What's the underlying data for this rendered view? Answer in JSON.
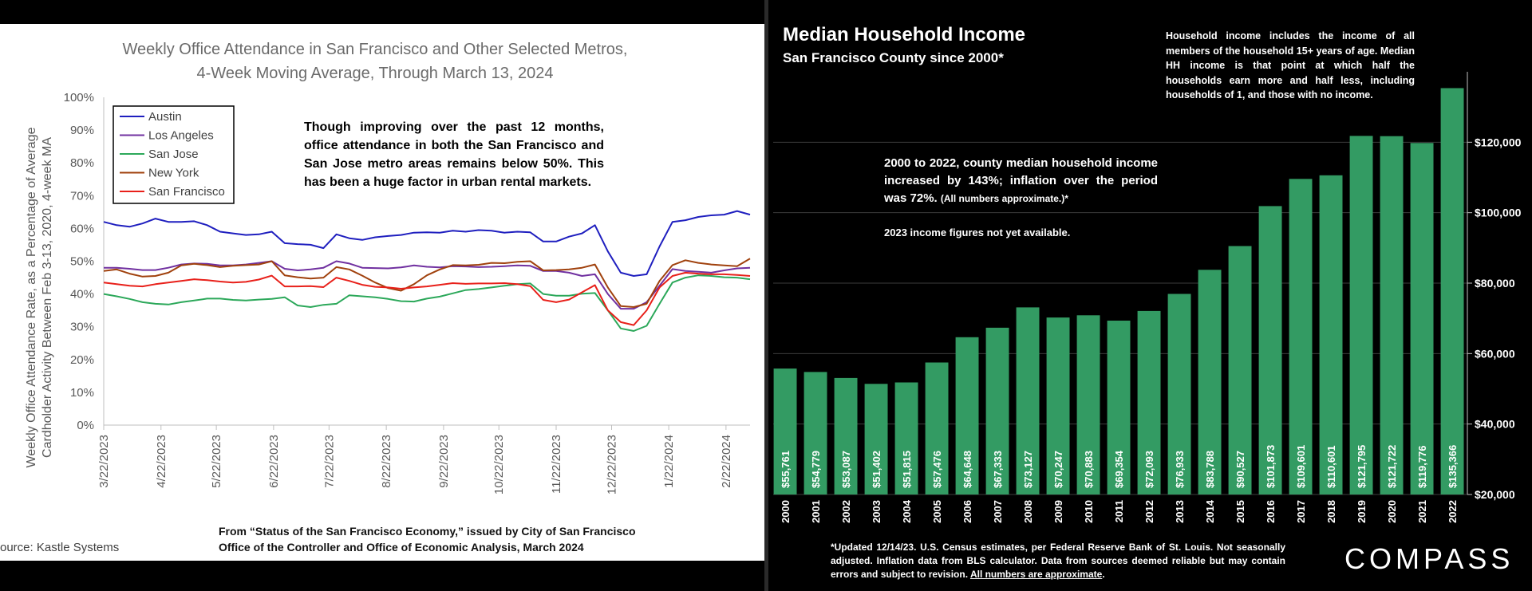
{
  "left": {
    "title_line1": "Weekly Office Attendance in San Francisco and Other Selected Metros,",
    "title_line2": "4-Week Moving Average, Through March 13, 2024",
    "ylabel_line1": "Weekly Office Attendance  Rate, as a Percentage of Average",
    "ylabel_line2": "Cardholder Activity Between Feb 3-13, 2020, 4-week MA",
    "note": "Though improving over the past 12 months, office attendance in both the San Francisco and San Jose metro areas remains below 50%. This has been a huge factor in urban rental markets.",
    "source": "ource: Kastle Systems",
    "footer_line1": "From “Status of the San Francisco Economy,” issued by City of San Francisco",
    "footer_line2": "Office of the Controller and Office of Economic Analysis, March 2024"
  },
  "right": {
    "title": "Median Household Income",
    "subtitle": "San Francisco County since 2000*",
    "top_note": "Household income includes the income of all members of the household 15+ years of age. Median HH income is that point at which half the households earn more and half less, including households of 1, and those with no income.",
    "mid_note_main": "2000 to 2022, county median household income increased by 143%; inflation over the period was 72%.",
    "mid_note_small": "(All numbers approximate.)*",
    "mid_note_2": "2023 income figures not yet available.",
    "footer_main": "*Updated 12/14/23. U.S. Census estimates, per Federal Reserve Bank of St. Louis. Not seasonally adjusted. Inflation data from BLS calculator. Data from sources deemed reliable but may contain errors and subject to revision. ",
    "footer_underline": "All numbers are approximate",
    "footer_end": ".",
    "logo": "COMPASS"
  },
  "chart_data": [
    {
      "type": "line",
      "title": "Weekly Office Attendance in San Francisco and Other Selected Metros, 4-Week Moving Average, Through March 13, 2024",
      "ylabel": "Weekly Office Attendance  Rate, as a Percentage of Average Cardholder Activity Between Feb 3-13, 2020, 4-week MA",
      "ylim": [
        0,
        100
      ],
      "yticks": [
        "0%",
        "10%",
        "20%",
        "30%",
        "40%",
        "50%",
        "60%",
        "70%",
        "80%",
        "90%",
        "100%"
      ],
      "xtick_labels": [
        "3/22/2023",
        "4/22/2023",
        "5/22/2023",
        "6/22/2023",
        "7/22/2023",
        "8/22/2023",
        "9/22/2023",
        "10/22/2023",
        "11/22/2023",
        "12/22/2023",
        "1/22/2024",
        "2/22/2024"
      ],
      "xtick_weeks": [
        0,
        4.43,
        8.71,
        13.14,
        17.43,
        21.86,
        26.29,
        30.57,
        35.0,
        39.29,
        43.71,
        48.14
      ],
      "x_weeks_count": 51,
      "legend": "top-left",
      "series": [
        {
          "name": "Austin",
          "color": "#1f1fbf",
          "values": [
            62,
            61,
            60.5,
            61.5,
            63,
            62,
            62,
            62.2,
            61,
            59,
            58.5,
            58,
            58.2,
            59,
            55.5,
            55.2,
            55,
            54,
            58.2,
            57,
            56.5,
            57.3,
            57.7,
            58,
            58.7,
            58.8,
            58.7,
            59.3,
            59,
            59.5,
            59.3,
            58.7,
            59,
            58.8,
            56,
            56,
            57.5,
            58.5,
            61,
            53,
            46.5,
            45.5,
            46,
            54.5,
            62,
            62.5,
            63.5,
            64,
            64.2,
            65.3,
            64.2
          ]
        },
        {
          "name": "Los Angeles",
          "color": "#7030a0",
          "values": [
            48,
            48,
            47.7,
            47.3,
            47.3,
            48,
            49,
            49.3,
            49.2,
            48.7,
            48.7,
            49,
            49.5,
            50,
            47.7,
            47.2,
            47.5,
            48,
            50,
            49.3,
            48,
            47.9,
            47.8,
            48.1,
            48.7,
            48.3,
            48.1,
            48.5,
            48.4,
            48.2,
            48.3,
            48.5,
            48.7,
            48.6,
            47,
            47,
            46.5,
            45.5,
            46,
            40,
            35.5,
            35.5,
            37.5,
            42.5,
            47.6,
            47,
            46.8,
            46.5,
            47.2,
            47.8,
            48
          ]
        },
        {
          "name": "San Jose",
          "color": "#2ca85a",
          "values": [
            40,
            39.3,
            38.5,
            37.5,
            37,
            36.8,
            37.5,
            38,
            38.6,
            38.6,
            38.2,
            38,
            38.3,
            38.5,
            39,
            36.5,
            36,
            36.7,
            37,
            39.6,
            39.3,
            39,
            38.5,
            37.8,
            37.7,
            38.6,
            39.2,
            40.2,
            41.2,
            41.5,
            42,
            42.5,
            43,
            43.2,
            40,
            39.5,
            39.5,
            40.1,
            40.3,
            35,
            29.5,
            28.7,
            30.3,
            37,
            43.5,
            45,
            45.7,
            45.5,
            45.1,
            45,
            44.5
          ]
        },
        {
          "name": "New York",
          "color": "#a0410d",
          "values": [
            47,
            47.5,
            46.2,
            45.3,
            45.5,
            46.5,
            48.7,
            49.2,
            48.8,
            48.2,
            48.6,
            48.8,
            49,
            50,
            45.7,
            45.1,
            44.7,
            45,
            48.2,
            47.5,
            45.6,
            43.5,
            41.8,
            41,
            43,
            45.7,
            47.5,
            48.8,
            48.7,
            48.9,
            49.5,
            49.4,
            49.8,
            50,
            47.2,
            47.3,
            47.5,
            48,
            49,
            42,
            36.3,
            36,
            37,
            44,
            48.8,
            50.3,
            49.5,
            49,
            48.7,
            48.5,
            50.8
          ]
        },
        {
          "name": "San Francisco",
          "color": "#e8201a",
          "values": [
            43.5,
            43,
            42.5,
            42.3,
            43,
            43.5,
            44,
            44.5,
            44.2,
            43.8,
            43.5,
            43.7,
            44.4,
            45.6,
            42.3,
            42.3,
            42.4,
            42.1,
            45,
            44,
            42.8,
            42.2,
            42,
            41.6,
            42,
            42.3,
            42.8,
            43.3,
            43.1,
            43.2,
            43.2,
            43.3,
            43,
            42.4,
            38.2,
            37.5,
            38.3,
            40.5,
            42.7,
            35,
            31.4,
            30.5,
            35,
            42,
            45.5,
            46.5,
            46.2,
            46,
            46,
            45.8,
            45.5
          ]
        }
      ]
    },
    {
      "type": "bar",
      "title": "Median Household Income",
      "subtitle": "San Francisco County since 2000*",
      "categories": [
        "2000",
        "2001",
        "2002",
        "2003",
        "2004",
        "2005",
        "2006",
        "2007",
        "2008",
        "2009",
        "2010",
        "2011",
        "2012",
        "2013",
        "2014",
        "2015",
        "2016",
        "2017",
        "2018",
        "2019",
        "2020",
        "2021",
        "2022"
      ],
      "values": [
        55761,
        54779,
        53087,
        51402,
        51815,
        57476,
        64648,
        67333,
        73127,
        70247,
        70883,
        69354,
        72093,
        76933,
        83788,
        90527,
        101873,
        109601,
        110601,
        121795,
        121722,
        119776,
        135366
      ],
      "value_labels": [
        "$55,761",
        "$54,779",
        "$53,087",
        "$51,402",
        "$51,815",
        "$57,476",
        "$64,648",
        "$67,333",
        "$73,127",
        "$70,247",
        "$70,883",
        "$69,354",
        "$72,093",
        "$76,933",
        "$83,788",
        "$90,527",
        "$101,873",
        "$109,601",
        "$110,601",
        "$121,795",
        "$121,722",
        "$119,776",
        "$135,366"
      ],
      "ylim": [
        20000,
        140000
      ],
      "yticks": [
        20000,
        40000,
        60000,
        80000,
        100000,
        120000
      ],
      "ytick_labels": [
        "$20,000",
        "$40,000",
        "$60,000",
        "$80,000",
        "$100,000",
        "$120,000"
      ],
      "bar_color": "#339b63",
      "grid": true
    }
  ]
}
